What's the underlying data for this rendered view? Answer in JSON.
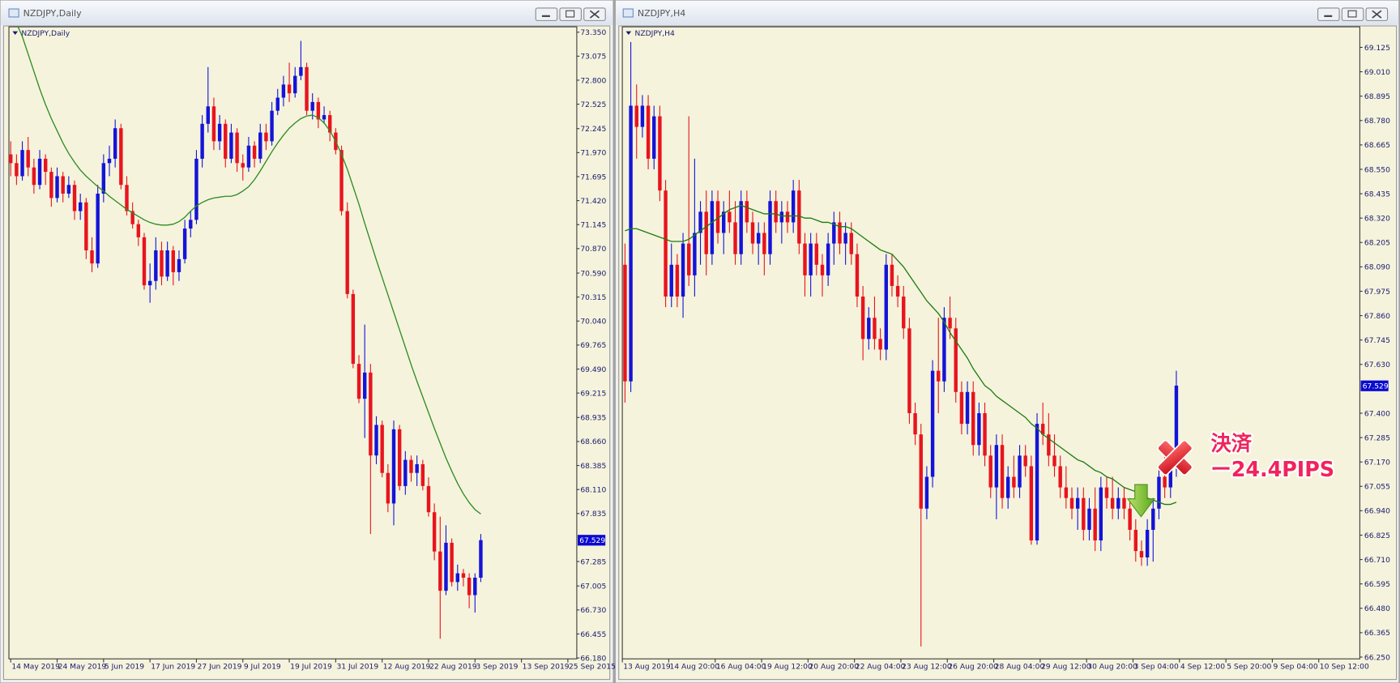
{
  "chart_data": [
    {
      "type": "candlestick",
      "title": "NZDJPY,Daily",
      "up_color": "#1414d8",
      "down_color": "#e8141e",
      "ma_color": "#2e8b22",
      "ylim": [
        66.18,
        73.35
      ],
      "yticks": [
        {
          "value": 73.35,
          "label": "73.350"
        },
        73.075,
        {
          "value": 72.8,
          "label": "72.800"
        },
        72.525,
        72.245,
        {
          "value": 71.97,
          "label": "71.970"
        },
        71.695,
        {
          "value": 71.42,
          "label": "71.420"
        },
        71.145,
        {
          "value": 70.87,
          "label": "70.870"
        },
        {
          "value": 70.59,
          "label": "70.590"
        },
        70.315,
        {
          "value": 70.04,
          "label": "70.040"
        },
        69.765,
        {
          "value": 69.49,
          "label": "69.490"
        },
        69.215,
        68.935,
        {
          "value": 68.66,
          "label": "68.660"
        },
        68.385,
        {
          "value": 68.11,
          "label": "68.110"
        },
        67.835,
        67.285,
        67.005,
        {
          "value": 66.73,
          "label": "66.730"
        },
        66.455,
        {
          "value": 66.18,
          "label": "66.180"
        }
      ],
      "current_price": 67.529,
      "x_labels": [
        "14 May 2019",
        "24 May 2019",
        "5 Jun 2019",
        "17 Jun 2019",
        "27 Jun 2019",
        "9 Jul 2019",
        "19 Jul 2019",
        "31 Jul 2019",
        "12 Aug 2019",
        "22 Aug 2019",
        "3 Sep 2019",
        "13 Sep 2019",
        "25 Sep 2015"
      ],
      "open": [
        71.95,
        71.85,
        71.7,
        72.0,
        71.8,
        71.6,
        71.9,
        71.75,
        71.45,
        71.7,
        71.5,
        71.6,
        71.3,
        71.4,
        70.85,
        70.7,
        71.5,
        71.85,
        71.9,
        72.25,
        71.6,
        71.3,
        71.15,
        71.0,
        70.45,
        70.5,
        70.85,
        70.55,
        70.85,
        70.6,
        70.75,
        71.1,
        71.2,
        71.9,
        72.3,
        72.5,
        72.1,
        72.3,
        71.9,
        72.2,
        71.85,
        71.8,
        72.05,
        71.9,
        72.2,
        72.1,
        72.45,
        72.6,
        72.75,
        72.65,
        72.85,
        72.95,
        72.45,
        72.55,
        72.35,
        72.4,
        72.2,
        72.0,
        71.3,
        70.35,
        69.55,
        69.15,
        69.45,
        68.5,
        68.85,
        68.3,
        67.95,
        68.8,
        68.15,
        68.45,
        68.3,
        68.4,
        68.15,
        67.85,
        67.4,
        66.95,
        67.5,
        67.05,
        67.15,
        67.1,
        66.9,
        67.1
      ],
      "high": [
        72.1,
        71.95,
        72.1,
        72.15,
        71.9,
        72.0,
        71.95,
        71.8,
        71.8,
        71.75,
        71.7,
        71.65,
        71.5,
        71.45,
        71.0,
        71.6,
        71.95,
        72.05,
        72.35,
        72.3,
        71.7,
        71.4,
        71.2,
        71.05,
        70.7,
        71.0,
        70.95,
        70.95,
        70.9,
        70.85,
        71.2,
        71.3,
        72.0,
        72.4,
        72.95,
        72.6,
        72.4,
        72.35,
        72.3,
        72.25,
        71.95,
        72.15,
        72.1,
        72.3,
        72.3,
        72.55,
        72.7,
        72.85,
        73.0,
        72.95,
        73.25,
        73.0,
        72.65,
        72.6,
        72.5,
        72.45,
        72.25,
        72.05,
        71.4,
        70.4,
        69.65,
        70.0,
        69.55,
        68.95,
        68.9,
        68.4,
        68.9,
        68.85,
        68.55,
        68.5,
        68.5,
        68.45,
        68.25,
        67.95,
        67.8,
        67.7,
        67.55,
        67.25,
        67.2,
        67.15,
        67.15,
        67.6
      ],
      "low": [
        71.7,
        71.6,
        71.65,
        71.7,
        71.5,
        71.55,
        71.6,
        71.35,
        71.4,
        71.4,
        71.45,
        71.2,
        71.2,
        70.75,
        70.6,
        70.65,
        71.4,
        71.7,
        71.8,
        71.55,
        71.25,
        71.1,
        70.9,
        70.4,
        70.25,
        70.4,
        70.45,
        70.5,
        70.45,
        70.5,
        70.7,
        71.0,
        71.15,
        71.8,
        72.2,
        72.0,
        72.0,
        71.8,
        71.85,
        71.75,
        71.65,
        71.75,
        71.8,
        71.85,
        72.0,
        72.05,
        72.4,
        72.5,
        72.55,
        72.6,
        72.8,
        72.4,
        72.35,
        72.25,
        72.3,
        72.1,
        71.95,
        71.25,
        70.3,
        69.5,
        69.1,
        68.7,
        67.6,
        68.4,
        68.25,
        67.85,
        67.7,
        68.1,
        68.05,
        68.2,
        68.15,
        68.1,
        67.8,
        67.3,
        66.4,
        66.9,
        67.0,
        66.95,
        67.0,
        66.75,
        66.7,
        67.05
      ],
      "close": [
        71.85,
        71.7,
        72.0,
        71.8,
        71.6,
        71.9,
        71.75,
        71.45,
        71.7,
        71.5,
        71.6,
        71.3,
        71.4,
        70.85,
        70.7,
        71.5,
        71.85,
        71.9,
        72.25,
        71.6,
        71.3,
        71.15,
        71.0,
        70.45,
        70.5,
        70.85,
        70.55,
        70.85,
        70.6,
        70.75,
        71.1,
        71.2,
        71.9,
        72.3,
        72.5,
        72.1,
        72.3,
        71.9,
        72.2,
        71.85,
        71.8,
        72.05,
        71.9,
        72.2,
        72.1,
        72.45,
        72.6,
        72.75,
        72.65,
        72.85,
        72.95,
        72.45,
        72.55,
        72.35,
        72.4,
        72.2,
        72.0,
        71.3,
        70.35,
        69.55,
        69.15,
        69.45,
        68.5,
        68.85,
        68.3,
        67.95,
        68.8,
        68.15,
        68.45,
        68.3,
        68.4,
        68.15,
        67.85,
        67.4,
        66.95,
        67.5,
        67.05,
        67.15,
        67.1,
        66.9,
        67.1,
        67.53
      ],
      "ma_values": [
        73.6,
        73.45,
        73.3,
        73.1,
        72.9,
        72.7,
        72.52,
        72.36,
        72.22,
        72.08,
        71.96,
        71.86,
        71.77,
        71.7,
        71.64,
        71.58,
        71.53,
        71.47,
        71.42,
        71.37,
        71.32,
        71.28,
        71.24,
        71.2,
        71.17,
        71.15,
        71.14,
        71.14,
        71.15,
        71.18,
        71.23,
        71.3,
        71.36,
        71.4,
        71.43,
        71.45,
        71.46,
        71.47,
        71.47,
        71.49,
        71.53,
        71.58,
        71.66,
        71.76,
        71.87,
        71.98,
        72.08,
        72.17,
        72.25,
        72.31,
        72.36,
        72.39,
        72.4,
        72.37,
        72.31,
        72.22,
        72.1,
        71.95,
        71.78,
        71.58,
        71.38,
        71.16,
        70.95,
        70.74,
        70.54,
        70.34,
        70.14,
        69.94,
        69.74,
        69.54,
        69.35,
        69.17,
        68.99,
        68.81,
        68.64,
        68.47,
        68.32,
        68.18,
        68.06,
        67.96,
        67.88,
        67.83
      ]
    },
    {
      "type": "candlestick",
      "title": "NZDJPY,H4",
      "up_color": "#1414d8",
      "down_color": "#e8141e",
      "ma_color": "#1f7a12",
      "ylim": [
        66.25,
        69.125
      ],
      "yticks": [
        69.125,
        {
          "value": 69.01,
          "label": "69.010"
        },
        68.895,
        {
          "value": 68.78,
          "label": "68.780"
        },
        68.665,
        {
          "value": 68.55,
          "label": "68.550"
        },
        68.435,
        {
          "value": 68.32,
          "label": "68.320"
        },
        68.205,
        {
          "value": 68.09,
          "label": "68.090"
        },
        67.975,
        {
          "value": 67.86,
          "label": "67.860"
        },
        67.745,
        {
          "value": 67.63,
          "label": "67.630"
        },
        {
          "value": 67.4,
          "label": "67.400"
        },
        67.285,
        {
          "value": 67.17,
          "label": "67.170"
        },
        67.055,
        {
          "value": 66.94,
          "label": "66.940"
        },
        66.825,
        {
          "value": 66.71,
          "label": "66.710"
        },
        66.595,
        {
          "value": 66.48,
          "label": "66.480"
        },
        66.365,
        {
          "value": 66.25,
          "label": "66.250"
        }
      ],
      "current_price": 67.529,
      "x_labels": [
        "13 Aug 2019",
        "14 Aug 20:00",
        "16 Aug 04:00",
        "19 Aug 12:00",
        "20 Aug 20:00",
        "22 Aug 04:00",
        "23 Aug 12:00",
        "26 Aug 20:00",
        "28 Aug 04:00",
        "29 Aug 12:00",
        "30 Aug 20:00",
        "3 Sep 04:00",
        "4 Sep 12:00",
        "5 Sep 20:00",
        "9 Sep 04:00",
        "10 Sep 12:00"
      ],
      "annotations": [
        "決済",
        "ー24.4PIPS"
      ],
      "open": [
        68.1,
        67.55,
        68.85,
        68.75,
        68.85,
        68.6,
        68.8,
        68.45,
        67.95,
        68.1,
        67.95,
        68.2,
        68.05,
        68.25,
        68.35,
        68.15,
        68.4,
        68.25,
        68.35,
        68.3,
        68.15,
        68.4,
        68.3,
        68.2,
        68.25,
        68.15,
        68.4,
        68.3,
        68.35,
        68.3,
        68.45,
        68.2,
        68.05,
        68.2,
        68.1,
        68.05,
        68.2,
        68.3,
        68.2,
        68.25,
        68.15,
        67.95,
        67.75,
        67.85,
        67.75,
        67.7,
        68.1,
        68.0,
        67.95,
        67.8,
        67.4,
        67.3,
        66.95,
        67.1,
        67.6,
        67.55,
        67.85,
        67.8,
        67.5,
        67.35,
        67.5,
        67.25,
        67.4,
        67.2,
        67.05,
        67.25,
        67.0,
        67.1,
        67.05,
        67.2,
        67.15,
        66.8,
        67.35,
        67.3,
        67.2,
        67.15,
        67.05,
        67.0,
        66.95,
        67.0,
        66.85,
        66.95,
        66.8,
        67.05,
        67.0,
        66.95,
        67.0,
        66.95,
        66.85,
        66.75,
        66.72,
        66.85,
        66.95,
        67.1,
        67.05,
        67.15
      ],
      "high": [
        68.2,
        69.15,
        68.95,
        68.9,
        68.9,
        68.85,
        68.85,
        68.5,
        68.2,
        68.15,
        68.25,
        68.8,
        68.6,
        68.4,
        68.45,
        68.45,
        68.45,
        68.4,
        68.45,
        68.4,
        68.45,
        68.45,
        68.35,
        68.3,
        68.3,
        68.45,
        68.45,
        68.4,
        68.4,
        68.5,
        68.5,
        68.25,
        68.25,
        68.25,
        68.15,
        68.25,
        68.35,
        68.35,
        68.3,
        68.3,
        68.2,
        68.0,
        67.9,
        67.95,
        67.8,
        68.15,
        68.15,
        68.05,
        68.0,
        67.85,
        67.45,
        67.35,
        67.15,
        67.65,
        67.85,
        67.9,
        67.95,
        67.85,
        67.55,
        67.55,
        67.55,
        67.45,
        67.45,
        67.25,
        67.3,
        67.3,
        67.15,
        67.2,
        67.25,
        67.25,
        67.2,
        67.4,
        67.45,
        67.4,
        67.3,
        67.2,
        67.15,
        67.05,
        67.05,
        67.05,
        67.0,
        67.05,
        67.1,
        67.1,
        67.1,
        67.05,
        67.05,
        67.0,
        66.9,
        66.8,
        66.9,
        67.0,
        67.15,
        67.2,
        67.2,
        67.6
      ],
      "low": [
        67.45,
        67.5,
        68.6,
        68.7,
        68.55,
        68.55,
        68.4,
        67.9,
        67.9,
        67.9,
        67.85,
        68.0,
        67.95,
        68.1,
        68.05,
        68.1,
        68.2,
        68.15,
        68.25,
        68.1,
        68.1,
        68.25,
        68.15,
        68.1,
        68.05,
        68.1,
        68.25,
        68.2,
        68.25,
        68.25,
        68.15,
        67.95,
        67.95,
        68.05,
        67.95,
        68.0,
        68.1,
        68.15,
        68.1,
        68.1,
        67.9,
        67.65,
        67.7,
        67.7,
        67.65,
        67.65,
        67.95,
        67.9,
        67.75,
        67.35,
        67.25,
        66.3,
        66.9,
        67.05,
        67.4,
        67.5,
        67.75,
        67.45,
        67.3,
        67.3,
        67.2,
        67.2,
        67.15,
        67.0,
        66.9,
        66.95,
        66.95,
        67.0,
        67.0,
        67.1,
        66.78,
        66.78,
        67.25,
        67.15,
        67.1,
        67.0,
        66.95,
        66.9,
        66.85,
        66.8,
        66.8,
        66.75,
        66.75,
        66.95,
        66.9,
        66.9,
        66.9,
        66.8,
        66.7,
        66.68,
        66.68,
        66.7,
        66.9,
        67.0,
        67.0,
        67.1
      ],
      "close": [
        67.55,
        68.85,
        68.75,
        68.85,
        68.6,
        68.8,
        68.45,
        67.95,
        68.1,
        67.95,
        68.2,
        68.05,
        68.25,
        68.35,
        68.15,
        68.4,
        68.25,
        68.35,
        68.3,
        68.15,
        68.4,
        68.3,
        68.2,
        68.25,
        68.15,
        68.4,
        68.3,
        68.35,
        68.3,
        68.45,
        68.2,
        68.05,
        68.2,
        68.1,
        68.05,
        68.2,
        68.3,
        68.2,
        68.25,
        68.15,
        67.95,
        67.75,
        67.85,
        67.75,
        67.7,
        68.1,
        68.0,
        67.95,
        67.8,
        67.4,
        67.3,
        66.95,
        67.1,
        67.6,
        67.55,
        67.85,
        67.8,
        67.5,
        67.35,
        67.5,
        67.25,
        67.4,
        67.2,
        67.05,
        67.25,
        67.0,
        67.1,
        67.05,
        67.2,
        67.15,
        66.8,
        67.35,
        67.3,
        67.2,
        67.15,
        67.05,
        67.0,
        66.95,
        67.0,
        66.85,
        66.95,
        66.8,
        67.05,
        67.0,
        66.95,
        67.0,
        66.95,
        66.85,
        66.75,
        66.72,
        66.85,
        66.95,
        67.1,
        67.05,
        67.15,
        67.53
      ],
      "ma_values": [
        68.26,
        68.27,
        68.27,
        68.26,
        68.25,
        68.24,
        68.23,
        68.22,
        68.21,
        68.21,
        68.21,
        68.22,
        68.24,
        68.26,
        68.28,
        68.3,
        68.32,
        68.34,
        68.36,
        68.37,
        68.38,
        68.37,
        68.36,
        68.35,
        68.34,
        68.34,
        68.34,
        68.33,
        68.33,
        68.33,
        68.33,
        68.32,
        68.32,
        68.31,
        68.3,
        68.3,
        68.29,
        68.28,
        68.28,
        68.27,
        68.25,
        68.23,
        68.21,
        68.19,
        68.17,
        68.16,
        68.15,
        68.12,
        68.09,
        68.05,
        68.01,
        67.97,
        67.93,
        67.9,
        67.87,
        67.83,
        67.78,
        67.74,
        67.7,
        67.66,
        67.61,
        67.57,
        67.53,
        67.51,
        67.48,
        67.46,
        67.44,
        67.42,
        67.4,
        67.38,
        67.35,
        67.33,
        67.3,
        67.28,
        67.26,
        67.24,
        67.22,
        67.2,
        67.18,
        67.17,
        67.15,
        67.13,
        67.12,
        67.1,
        67.09,
        67.07,
        67.05,
        67.04,
        67.03,
        67.01,
        67.0,
        66.99,
        66.98,
        66.97,
        66.97,
        66.98
      ]
    }
  ]
}
